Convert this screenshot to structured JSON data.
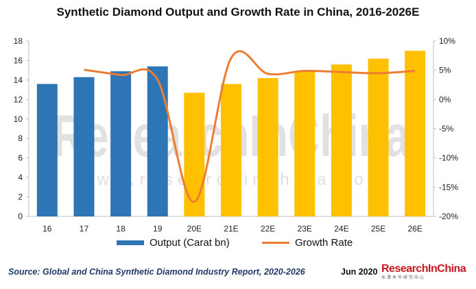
{
  "title": "Synthetic Diamond Output and Growth Rate in China, 2016-2026E",
  "watermark": {
    "main": "ResearchInChina",
    "url": "www.researchinchina.com"
  },
  "colors": {
    "bar_actual": "#2e75b6",
    "bar_estimate": "#ffc000",
    "line": "#ed7d31",
    "watermark": "#c9c9c9",
    "grid": "#bfbfbf",
    "source": "#1f3a66",
    "logo": "#c8161d"
  },
  "chart_data": {
    "type": "bar",
    "categories": [
      "16",
      "17",
      "18",
      "19",
      "20E",
      "21E",
      "22E",
      "23E",
      "24E",
      "25E",
      "26E"
    ],
    "series": [
      {
        "name": "Output (Carat bn)",
        "type": "bar",
        "axis": "left",
        "values": [
          13.6,
          14.3,
          14.9,
          15.4,
          12.7,
          13.6,
          14.2,
          14.9,
          15.6,
          16.2,
          17.0
        ],
        "estimate_from_index": 4
      },
      {
        "name": "Growth Rate",
        "type": "line",
        "axis": "right",
        "smooth": true,
        "values": [
          null,
          5.1,
          4.2,
          3.4,
          -17.5,
          7.1,
          4.4,
          4.9,
          4.7,
          4.5,
          4.9
        ]
      }
    ],
    "y_left": {
      "min": 0,
      "max": 18,
      "step": 2,
      "ticks": [
        "0",
        "2",
        "4",
        "6",
        "8",
        "10",
        "12",
        "14",
        "16",
        "18"
      ]
    },
    "y_right": {
      "min": -20,
      "max": 10,
      "step": 5,
      "ticks": [
        "-20%",
        "-15%",
        "-10%",
        "-5%",
        "0%",
        "5%",
        "10%"
      ]
    },
    "legend_position": "bottom",
    "grid": false
  },
  "legend": {
    "output_label": "Output (Carat bn)",
    "growth_label": "Growth Rate"
  },
  "footer": {
    "source": "Source: Global and China Synthetic Diamond Industry Report, 2020-2026",
    "date": "Jun 2020",
    "logo_main": "ResearchInChina",
    "logo_sub": "水清木华研究中心"
  }
}
